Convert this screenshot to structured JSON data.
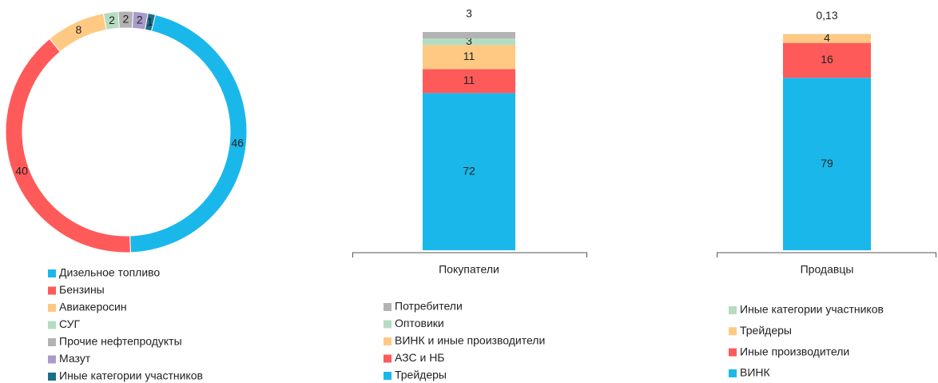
{
  "chart_data": [
    {
      "type": "donut",
      "series": [
        {
          "name": "Дизельное топливо",
          "color": "#1ab8ea",
          "values": [
            46
          ]
        },
        {
          "name": "Бензины",
          "color": "#ff5a5a",
          "values": [
            40
          ]
        },
        {
          "name": "Авиакеросин",
          "color": "#ffc983",
          "values": [
            8
          ]
        },
        {
          "name": "СУГ",
          "color": "#b5dcc0",
          "values": [
            2
          ]
        },
        {
          "name": "Прочие нефтепродукты",
          "color": "#b3b3b3",
          "values": [
            2
          ]
        },
        {
          "name": "Мазут",
          "color": "#a99ccb",
          "values": [
            2
          ]
        },
        {
          "name": "Иные категории участников",
          "color": "#1a6e8a",
          "values": [
            1
          ]
        }
      ]
    },
    {
      "type": "stacked_bar",
      "categories": [
        "Покупатели"
      ],
      "series": [
        {
          "name": "Трейдеры",
          "color": "#1ab8ea",
          "values": [
            72
          ]
        },
        {
          "name": "АЗС и НБ",
          "color": "#ff5a5a",
          "values": [
            11
          ]
        },
        {
          "name": "ВИНК и иные производители",
          "color": "#ffc983",
          "values": [
            11
          ]
        },
        {
          "name": "Оптовики",
          "color": "#b5dcc0",
          "values": [
            3
          ]
        },
        {
          "name": "Потребители",
          "color": "#b3b3b3",
          "values": [
            3
          ]
        }
      ]
    },
    {
      "type": "stacked_bar",
      "categories": [
        "Продавцы"
      ],
      "series": [
        {
          "name": "ВИНК",
          "color": "#1ab8ea",
          "values": [
            79
          ]
        },
        {
          "name": "Иные производители",
          "color": "#ff5a5a",
          "values": [
            16
          ]
        },
        {
          "name": "Трейдеры",
          "color": "#ffc983",
          "values": [
            4
          ]
        },
        {
          "name": "Иные категории участников",
          "color": "#b5dcc0",
          "values": [
            0.13
          ],
          "value_labels": [
            "0,13"
          ]
        }
      ]
    }
  ]
}
